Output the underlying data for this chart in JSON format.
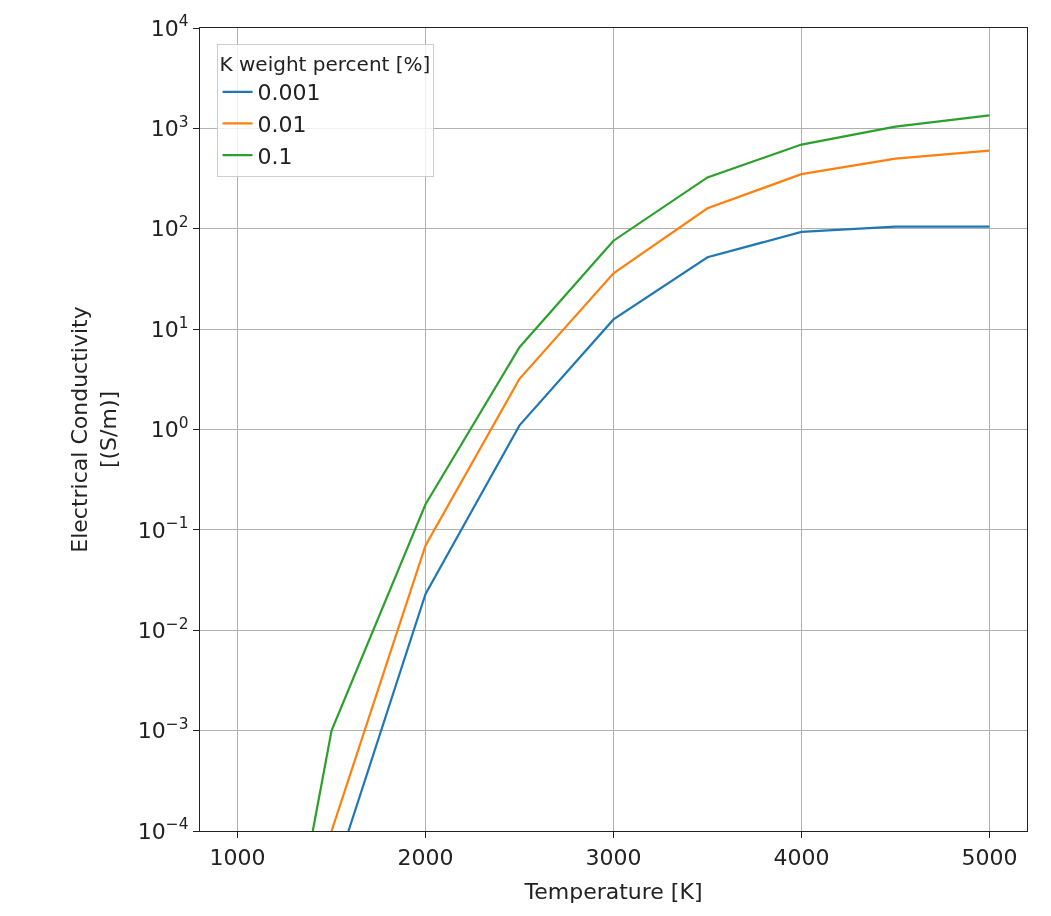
{
  "chart_data": {
    "type": "line",
    "xlabel": "Temperature [K]",
    "ylabel": "Electrical Conductivity\n[(S/m)]",
    "legend_title": "K weight percent [%]",
    "legend": "top left",
    "grid": true,
    "log": "y",
    "xlim": [
      800,
      5200
    ],
    "xticks": [
      1000,
      2000,
      3000,
      4000,
      5000
    ],
    "ylim": [
      0.0001,
      10000
    ],
    "yticks": [
      {
        "value": 0.0001,
        "label": "10$^{−4}$"
      },
      {
        "value": 0.001,
        "label": "10$^{−3}$"
      },
      {
        "value": 0.01,
        "label": "10$^{−2}$"
      },
      {
        "value": 0.1,
        "label": "10$^{−1}$"
      },
      {
        "value": 1,
        "label": "10$^{0}$"
      },
      {
        "value": 10,
        "label": "10$^{1}$"
      },
      {
        "value": 100,
        "label": "10$^{2}$"
      },
      {
        "value": 1000,
        "label": "10$^{3}$"
      },
      {
        "value": 10000,
        "label": "10$^{4}$"
      }
    ],
    "series": [
      {
        "name": "0.001",
        "color": "#1f77b4",
        "x": [
          1590,
          2000,
          2500,
          3000,
          3500,
          4000,
          4500,
          5000
        ],
        "values": [
          0.0001,
          0.023,
          1.1,
          12.5,
          52,
          93,
          105,
          105
        ]
      },
      {
        "name": "0.01",
        "color": "#ff7f0e",
        "x": [
          1500,
          2000,
          2500,
          3000,
          3500,
          4000,
          4500,
          5000
        ],
        "values": [
          0.0001,
          0.07,
          3.2,
          36,
          160,
          350,
          500,
          600
        ]
      },
      {
        "name": "0.1",
        "color": "#2ca02c",
        "x": [
          1400,
          1500,
          2000,
          2500,
          3000,
          3500,
          4000,
          4500,
          5000
        ],
        "values": [
          0.0001,
          0.001,
          0.18,
          6.6,
          76,
          325,
          690,
          1040,
          1350
        ]
      }
    ]
  }
}
